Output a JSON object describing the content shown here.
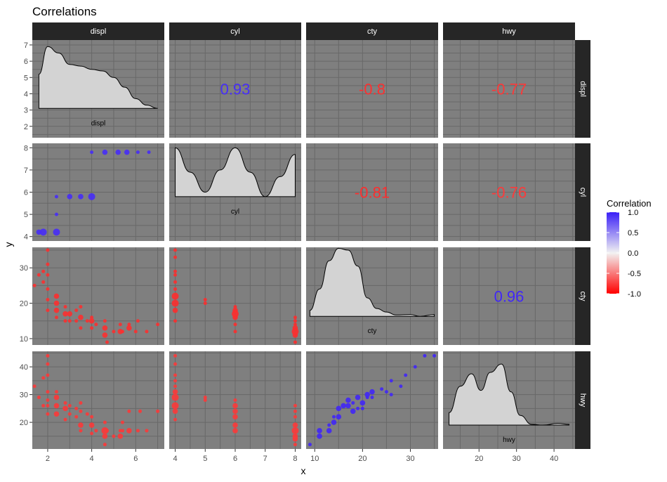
{
  "chart_data": {
    "type": "scatter",
    "title": "Correlations",
    "xlabel": "x",
    "ylabel": "y",
    "variables": [
      "displ",
      "cyl",
      "cty",
      "hwy"
    ],
    "legend": {
      "title": "Correlation",
      "ticks": [
        "1.0",
        "0.5",
        "0.0",
        "-0.5",
        "-1.0"
      ],
      "range": [
        -1,
        1
      ],
      "colors": {
        "high": "#3a1ff7",
        "mid": "#f2f2f2",
        "low": "#ff0000"
      },
      "placement": "right"
    },
    "x_axes": {
      "displ": {
        "range": [
          1.3,
          7.3
        ],
        "ticks": [
          2,
          4,
          6
        ],
        "labels": [
          "2",
          "4",
          "6"
        ]
      },
      "cyl": {
        "range": [
          3.8,
          8.2
        ],
        "ticks": [
          4,
          5,
          6,
          7,
          8
        ],
        "labels": [
          "4",
          "5",
          "6",
          "7",
          "8"
        ]
      },
      "cty": {
        "range": [
          8.2,
          35.8
        ],
        "ticks": [
          10,
          20,
          30
        ],
        "labels": [
          "10",
          "20",
          "30"
        ]
      },
      "hwy": {
        "range": [
          10.4,
          45.6
        ],
        "ticks": [
          20,
          30,
          40
        ],
        "labels": [
          "20",
          "30",
          "40"
        ]
      }
    },
    "y_axes": {
      "displ": {
        "range": [
          1.3,
          7.3
        ],
        "ticks": [
          2,
          3,
          4,
          5,
          6,
          7
        ],
        "labels": [
          "2",
          "3",
          "4",
          "5",
          "6",
          "7"
        ]
      },
      "cyl": {
        "range": [
          3.8,
          8.2
        ],
        "ticks": [
          4,
          5,
          6,
          7,
          8
        ],
        "labels": [
          "4",
          "5",
          "6",
          "7",
          "8"
        ]
      },
      "cty": {
        "range": [
          8.2,
          35.8
        ],
        "ticks": [
          10,
          20,
          30
        ],
        "labels": [
          "10",
          "20",
          "30"
        ]
      },
      "hwy": {
        "range": [
          10.4,
          45.6
        ],
        "ticks": [
          20,
          30,
          40
        ],
        "labels": [
          "20",
          "30",
          "40"
        ]
      }
    },
    "correlations": [
      {
        "row": "displ",
        "col": "cyl",
        "label": "0.93",
        "value": 0.93
      },
      {
        "row": "displ",
        "col": "cty",
        "label": "-0.8",
        "value": -0.8
      },
      {
        "row": "displ",
        "col": "hwy",
        "label": "-0.77",
        "value": -0.77
      },
      {
        "row": "cyl",
        "col": "cty",
        "label": "-0.81",
        "value": -0.81
      },
      {
        "row": "cyl",
        "col": "hwy",
        "label": "-0.76",
        "value": -0.76
      },
      {
        "row": "cty",
        "col": "hwy",
        "label": "0.96",
        "value": 0.96
      }
    ],
    "densities": [
      {
        "var": "displ",
        "label": "displ",
        "x": [
          1.6,
          2,
          2.5,
          3,
          3.5,
          4,
          4.5,
          5,
          5.5,
          6,
          6.5,
          7
        ],
        "y": [
          5.2,
          6.9,
          6.5,
          5.8,
          5.7,
          5.5,
          5.4,
          5.0,
          4.4,
          3.7,
          3.3,
          3.1
        ]
      },
      {
        "var": "cyl",
        "label": "cyl",
        "x": [
          4,
          4.5,
          5,
          5.5,
          6,
          6.5,
          7,
          7.5,
          8
        ],
        "y": [
          8.0,
          6.9,
          6.0,
          7.0,
          8.0,
          6.9,
          5.8,
          6.7,
          7.7
        ]
      },
      {
        "var": "cty",
        "label": "cty",
        "x": [
          9,
          11,
          13,
          15,
          17,
          19,
          21,
          23,
          25,
          27,
          30,
          32,
          35
        ],
        "y": [
          18,
          24,
          32,
          35.5,
          35,
          30.5,
          21.5,
          18.5,
          17.5,
          16.7,
          16.8,
          16.3,
          16.8
        ]
      },
      {
        "var": "hwy",
        "label": "hwy",
        "x": [
          12,
          15,
          18,
          20.5,
          23,
          26,
          28.5,
          31,
          34,
          37,
          41,
          44
        ],
        "y": [
          23.5,
          33,
          37.5,
          31.5,
          38,
          41,
          31,
          22.5,
          19.3,
          19.0,
          19.6,
          19.3
        ]
      }
    ],
    "scatter": [
      {
        "row": "cyl",
        "col": "displ",
        "value": 0.93,
        "points": [
          [
            1.6,
            4.2,
            2
          ],
          [
            1.8,
            4.2,
            3
          ],
          [
            2.4,
            4.2,
            3
          ],
          [
            2.4,
            5.0,
            1
          ],
          [
            2.4,
            5.8,
            1
          ],
          [
            3.0,
            5.8,
            2
          ],
          [
            3.5,
            5.8,
            2
          ],
          [
            4.0,
            5.8,
            3
          ],
          [
            4.0,
            7.8,
            1
          ],
          [
            4.6,
            7.8,
            2
          ],
          [
            5.2,
            7.8,
            2
          ],
          [
            5.6,
            7.8,
            2
          ],
          [
            6.1,
            7.8,
            1
          ],
          [
            6.6,
            7.8,
            1
          ]
        ]
      },
      {
        "row": "cty",
        "col": "displ",
        "value": -0.8,
        "points": [
          [
            1.4,
            25,
            1
          ],
          [
            1.6,
            28,
            1
          ],
          [
            1.8,
            26,
            1
          ],
          [
            1.8,
            29,
            1
          ],
          [
            2.0,
            21,
            1
          ],
          [
            2.0,
            24,
            1
          ],
          [
            2.0,
            28,
            1
          ],
          [
            2.0,
            31,
            1
          ],
          [
            2.0,
            35,
            1
          ],
          [
            2.0,
            18,
            1
          ],
          [
            2.4,
            18,
            2
          ],
          [
            2.4,
            20,
            2
          ],
          [
            2.4,
            22,
            2
          ],
          [
            2.4,
            16,
            1
          ],
          [
            2.8,
            15,
            1
          ],
          [
            2.8,
            17,
            2
          ],
          [
            2.8,
            19,
            1
          ],
          [
            3.0,
            15,
            1
          ],
          [
            3.0,
            17,
            2
          ],
          [
            3.3,
            15,
            1
          ],
          [
            3.3,
            18,
            1
          ],
          [
            3.5,
            13,
            1
          ],
          [
            3.5,
            16,
            2
          ],
          [
            3.5,
            19,
            1
          ],
          [
            3.8,
            15,
            1
          ],
          [
            4.0,
            13,
            1
          ],
          [
            4.0,
            15,
            2
          ],
          [
            4.0,
            16,
            1
          ],
          [
            4.2,
            14,
            1
          ],
          [
            4.6,
            11,
            2
          ],
          [
            4.6,
            13,
            2
          ],
          [
            4.6,
            15,
            1
          ],
          [
            4.7,
            9,
            1
          ],
          [
            5.0,
            12,
            1
          ],
          [
            5.3,
            12,
            2
          ],
          [
            5.3,
            14,
            1
          ],
          [
            5.4,
            12,
            1
          ],
          [
            5.7,
            13,
            2
          ],
          [
            5.7,
            14,
            1
          ],
          [
            6.0,
            12,
            1
          ],
          [
            6.1,
            15,
            1
          ],
          [
            6.5,
            12,
            1
          ],
          [
            7.0,
            14,
            1
          ]
        ]
      },
      {
        "row": "cty",
        "col": "cyl",
        "value": -0.81,
        "points": [
          [
            4,
            15,
            1
          ],
          [
            4,
            18,
            2
          ],
          [
            4,
            20,
            3
          ],
          [
            4,
            22,
            3
          ],
          [
            4,
            24,
            1
          ],
          [
            4,
            26,
            1
          ],
          [
            4,
            28,
            1
          ],
          [
            4,
            29,
            1
          ],
          [
            4,
            33,
            1
          ],
          [
            4,
            35,
            1
          ],
          [
            5,
            20,
            1
          ],
          [
            5,
            21,
            1
          ],
          [
            6,
            12,
            1
          ],
          [
            6,
            14,
            1
          ],
          [
            6,
            16,
            2
          ],
          [
            6,
            17,
            3
          ],
          [
            6,
            18,
            2
          ],
          [
            6,
            19,
            1
          ],
          [
            8,
            9,
            1
          ],
          [
            8,
            11,
            2
          ],
          [
            8,
            12,
            3
          ],
          [
            8,
            13,
            2
          ],
          [
            8,
            14,
            1
          ],
          [
            8,
            15,
            1
          ],
          [
            8,
            16,
            1
          ]
        ]
      },
      {
        "row": "hwy",
        "col": "displ",
        "value": -0.77,
        "points": [
          [
            1.4,
            33,
            1
          ],
          [
            1.6,
            29,
            1
          ],
          [
            1.8,
            26,
            1
          ],
          [
            1.8,
            36,
            1
          ],
          [
            2.0,
            26,
            1
          ],
          [
            2.0,
            28,
            1
          ],
          [
            2.0,
            31,
            1
          ],
          [
            2.0,
            37,
            1
          ],
          [
            2.0,
            41,
            1
          ],
          [
            2.0,
            44,
            1
          ],
          [
            2.0,
            23,
            1
          ],
          [
            2.4,
            23,
            2
          ],
          [
            2.4,
            26,
            2
          ],
          [
            2.4,
            29,
            2
          ],
          [
            2.4,
            31,
            1
          ],
          [
            2.8,
            21,
            1
          ],
          [
            2.8,
            25,
            2
          ],
          [
            2.8,
            27,
            1
          ],
          [
            3.0,
            23,
            1
          ],
          [
            3.0,
            26,
            1
          ],
          [
            3.3,
            22,
            1
          ],
          [
            3.3,
            25,
            1
          ],
          [
            3.5,
            17,
            1
          ],
          [
            3.5,
            19,
            2
          ],
          [
            3.5,
            24,
            1
          ],
          [
            3.5,
            27,
            1
          ],
          [
            3.8,
            23,
            1
          ],
          [
            4.0,
            16,
            1
          ],
          [
            4.0,
            19,
            2
          ],
          [
            4.0,
            22,
            1
          ],
          [
            4.2,
            17,
            1
          ],
          [
            4.6,
            12,
            1
          ],
          [
            4.6,
            15,
            2
          ],
          [
            4.6,
            17,
            3
          ],
          [
            4.6,
            20,
            1
          ],
          [
            4.7,
            17,
            1
          ],
          [
            5.0,
            15,
            1
          ],
          [
            5.3,
            15,
            2
          ],
          [
            5.3,
            17,
            1
          ],
          [
            5.4,
            17,
            1
          ],
          [
            5.4,
            20,
            1
          ],
          [
            5.7,
            17,
            2
          ],
          [
            5.7,
            24,
            1
          ],
          [
            6.1,
            17,
            1
          ],
          [
            6.2,
            24,
            1
          ],
          [
            6.5,
            17,
            1
          ],
          [
            7.0,
            24,
            1
          ]
        ]
      },
      {
        "row": "hwy",
        "col": "cyl",
        "value": -0.76,
        "points": [
          [
            4,
            21,
            1
          ],
          [
            4,
            24,
            2
          ],
          [
            4,
            26,
            3
          ],
          [
            4,
            29,
            3
          ],
          [
            4,
            31,
            2
          ],
          [
            4,
            33,
            1
          ],
          [
            4,
            35,
            1
          ],
          [
            4,
            37,
            1
          ],
          [
            4,
            41,
            1
          ],
          [
            4,
            44,
            1
          ],
          [
            5,
            28,
            1
          ],
          [
            5,
            29,
            1
          ],
          [
            6,
            17,
            2
          ],
          [
            6,
            19,
            2
          ],
          [
            6,
            22,
            2
          ],
          [
            6,
            24,
            2
          ],
          [
            6,
            26,
            2
          ],
          [
            6,
            28,
            1
          ],
          [
            8,
            12,
            1
          ],
          [
            8,
            14,
            2
          ],
          [
            8,
            15,
            2
          ],
          [
            8,
            17,
            3
          ],
          [
            8,
            19,
            2
          ],
          [
            8,
            22,
            1
          ],
          [
            8,
            24,
            1
          ],
          [
            8,
            26,
            1
          ]
        ]
      },
      {
        "row": "hwy",
        "col": "cty",
        "value": 0.96,
        "points": [
          [
            9,
            12,
            1
          ],
          [
            11,
            15,
            2
          ],
          [
            11,
            17,
            2
          ],
          [
            13,
            17,
            2
          ],
          [
            13,
            19,
            1
          ],
          [
            14,
            20,
            2
          ],
          [
            14,
            22,
            1
          ],
          [
            15,
            22,
            2
          ],
          [
            15,
            25,
            2
          ],
          [
            16,
            26,
            2
          ],
          [
            17,
            26,
            2
          ],
          [
            17,
            28,
            2
          ],
          [
            18,
            24,
            2
          ],
          [
            18,
            27,
            1
          ],
          [
            19,
            25,
            1
          ],
          [
            19,
            29,
            2
          ],
          [
            20,
            25,
            1
          ],
          [
            20,
            27,
            2
          ],
          [
            21,
            29,
            1
          ],
          [
            21,
            30,
            2
          ],
          [
            22,
            29,
            1
          ],
          [
            22,
            31,
            2
          ],
          [
            24,
            32,
            1
          ],
          [
            25,
            31,
            1
          ],
          [
            26,
            30,
            1
          ],
          [
            26,
            35,
            1
          ],
          [
            28,
            33,
            1
          ],
          [
            29,
            37,
            1
          ],
          [
            31,
            40,
            1
          ],
          [
            33,
            44,
            1
          ],
          [
            35,
            44,
            1
          ]
        ]
      }
    ]
  }
}
